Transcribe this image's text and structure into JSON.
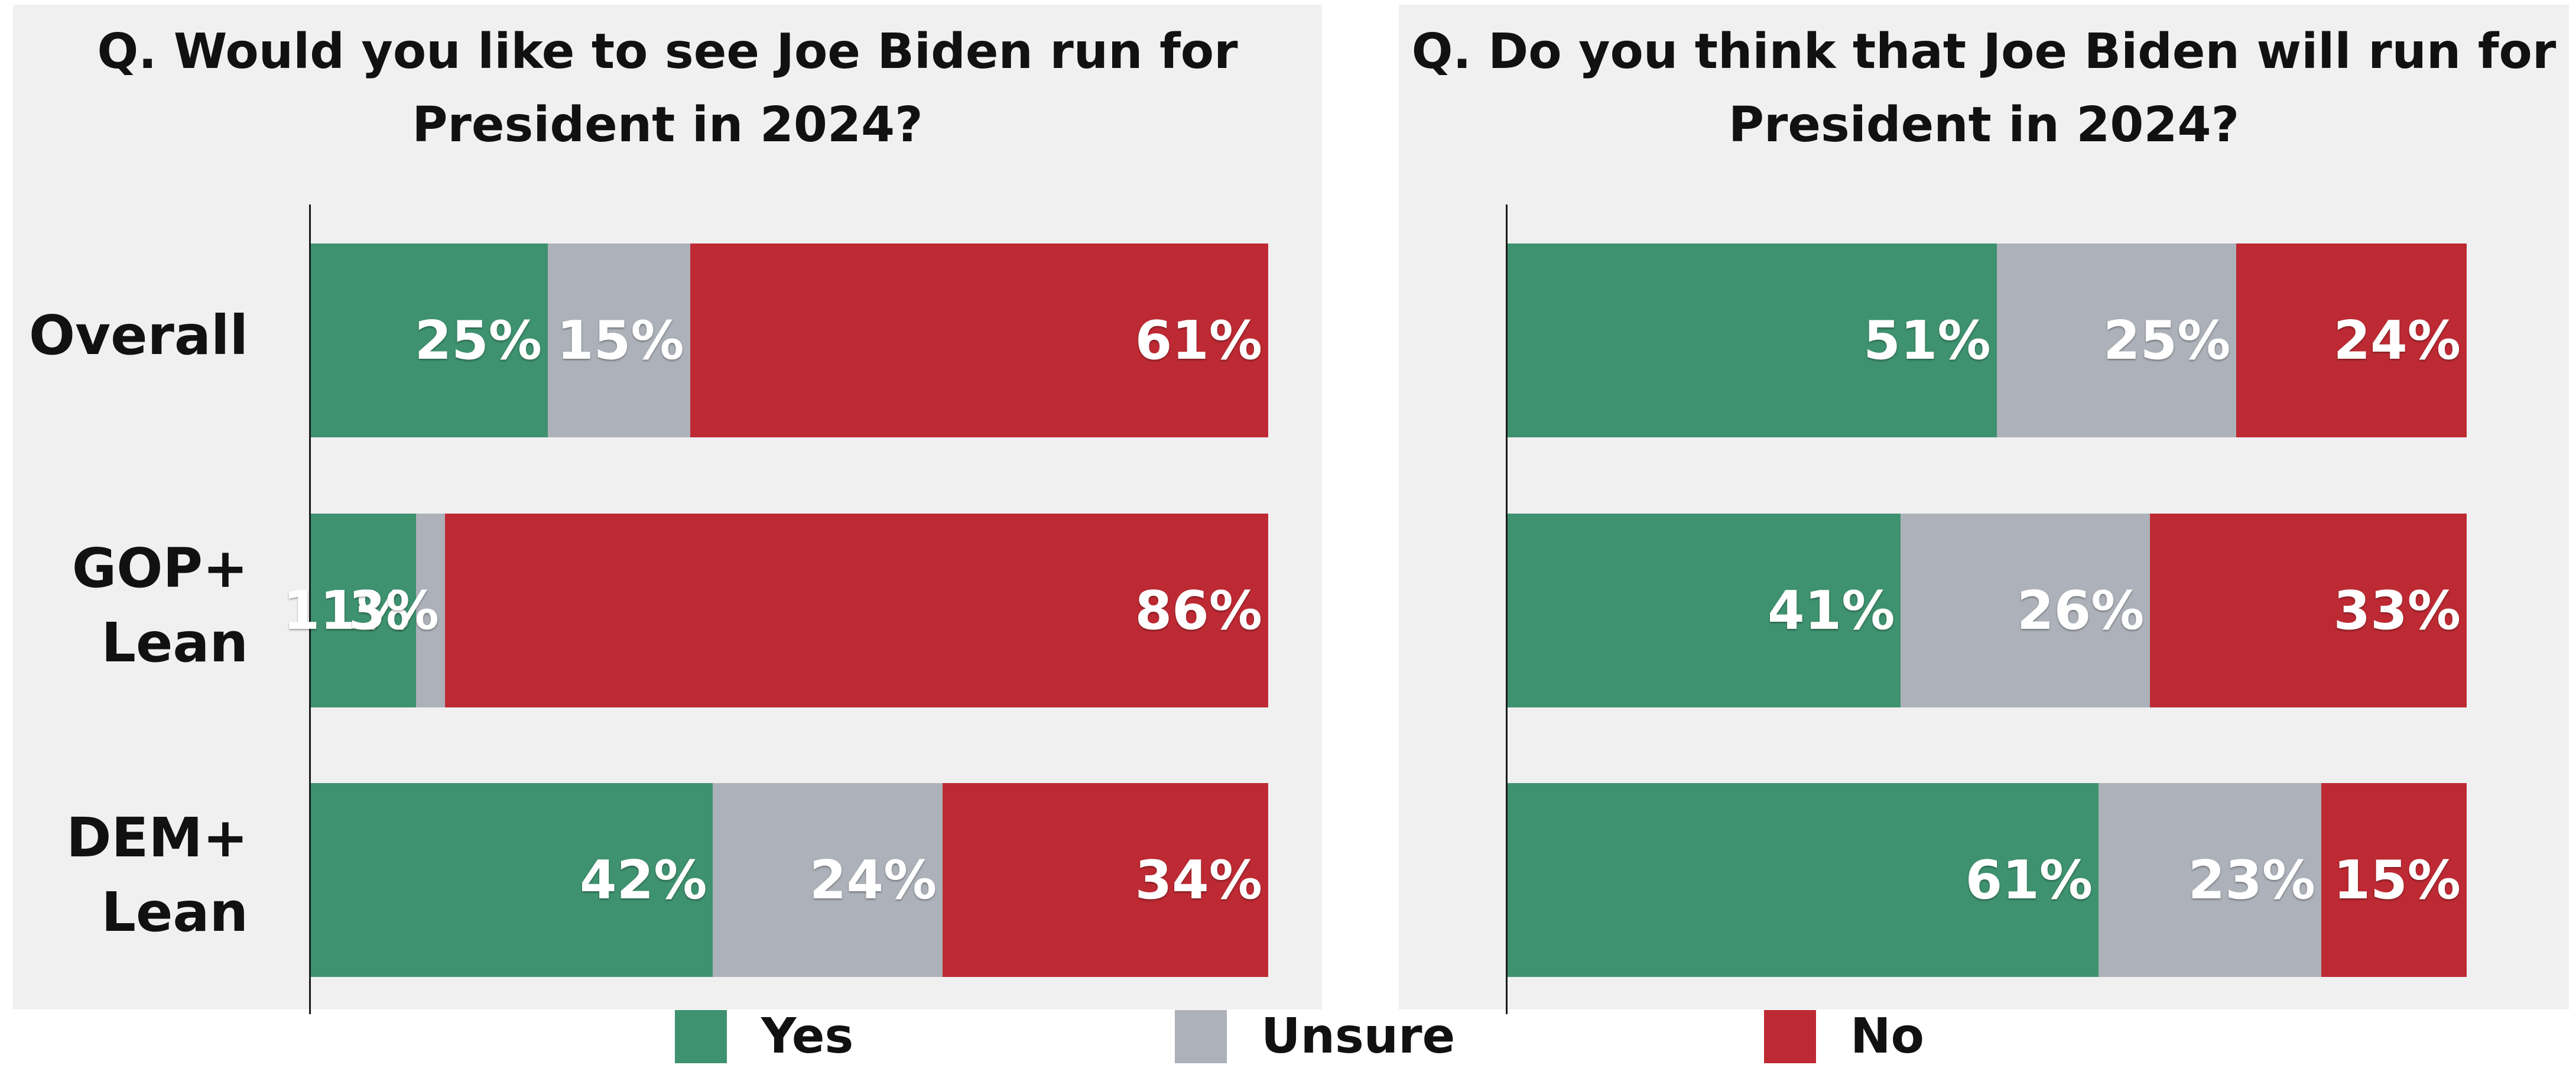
{
  "colors": {
    "yes": "#3e926f",
    "unsure": "#adb1b9",
    "no": "#be2a33"
  },
  "legend": [
    {
      "key": "yes",
      "label": "Yes"
    },
    {
      "key": "unsure",
      "label": "Unsure"
    },
    {
      "key": "no",
      "label": "No"
    }
  ],
  "chart_data": [
    {
      "type": "bar",
      "stacked": true,
      "orientation": "horizontal",
      "title_lines": [
        "Q. Would you like to see Joe Biden run for",
        "President in 2024?"
      ],
      "categories": [
        {
          "lines": [
            "Overall"
          ]
        },
        {
          "lines": [
            "GOP+",
            "Lean"
          ]
        },
        {
          "lines": [
            "DEM+",
            "Lean"
          ]
        }
      ],
      "series": [
        {
          "name": "Yes",
          "key": "yes",
          "values": [
            25,
            11,
            42
          ],
          "labels": [
            "25%",
            "11%",
            "42%"
          ]
        },
        {
          "name": "Unsure",
          "key": "unsure",
          "values": [
            15,
            3,
            24
          ],
          "labels": [
            "15%",
            "3%",
            "24%"
          ]
        },
        {
          "name": "No",
          "key": "no",
          "values": [
            61,
            86,
            34
          ],
          "labels": [
            "61%",
            "86%",
            "34%"
          ]
        }
      ]
    },
    {
      "type": "bar",
      "stacked": true,
      "orientation": "horizontal",
      "title_lines": [
        "Q. Do you think that Joe Biden will run for",
        "President in 2024?"
      ],
      "categories": [
        {
          "lines": [
            "Overall"
          ]
        },
        {
          "lines": [
            "GOP+",
            "Lean"
          ]
        },
        {
          "lines": [
            "DEM+",
            "Lean"
          ]
        }
      ],
      "series": [
        {
          "name": "Yes",
          "key": "yes",
          "values": [
            51,
            41,
            61
          ],
          "labels": [
            "51%",
            "41%",
            "61%"
          ]
        },
        {
          "name": "Unsure",
          "key": "unsure",
          "values": [
            25,
            26,
            23
          ],
          "labels": [
            "25%",
            "26%",
            "23%"
          ]
        },
        {
          "name": "No",
          "key": "no",
          "values": [
            24,
            33,
            15
          ],
          "labels": [
            "24%",
            "33%",
            "15%"
          ]
        }
      ]
    }
  ]
}
